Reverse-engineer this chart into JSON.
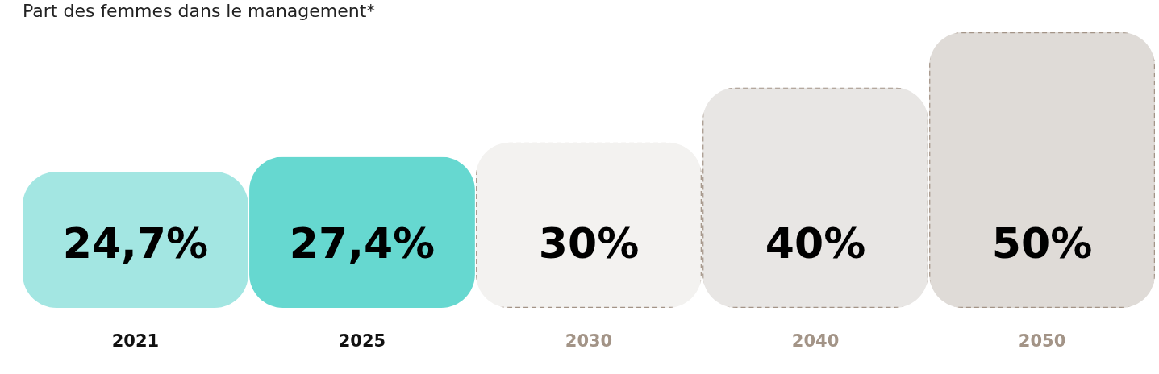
{
  "chart_data": {
    "type": "bar",
    "title": "Part des femmes dans le management*",
    "categories": [
      "2021",
      "2025",
      "2030",
      "2040",
      "2050"
    ],
    "series": [
      {
        "values": [
          24.7,
          27.4,
          null,
          null,
          null
        ],
        "value_labels": [
          "24,7%",
          "27,4%",
          null,
          null,
          null
        ],
        "colors": [
          "#a3e6e2",
          "#66d8d0",
          null,
          null,
          null
        ],
        "line_style": "solid"
      },
      {
        "values": [
          null,
          null,
          30,
          40,
          50
        ],
        "value_labels": [
          null,
          null,
          "30%",
          "40%",
          "50%"
        ],
        "colors": [
          null,
          null,
          "#f3f2f0",
          "#e8e6e4",
          "#dfdbd7"
        ],
        "line_style": "dashed"
      }
    ],
    "grid": false
  }
}
